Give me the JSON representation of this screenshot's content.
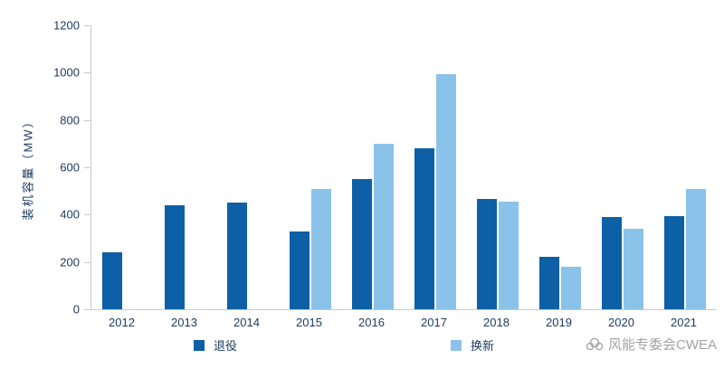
{
  "chart_data": {
    "type": "bar",
    "title": "",
    "xlabel": "",
    "ylabel": "装机容量（MW）",
    "ylim": [
      0,
      1200
    ],
    "yticks": [
      0,
      200,
      400,
      600,
      800,
      1000,
      1200
    ],
    "grid": false,
    "legend_position": "bottom",
    "categories": [
      "2012",
      "2013",
      "2014",
      "2015",
      "2016",
      "2017",
      "2018",
      "2019",
      "2020",
      "2021"
    ],
    "series": [
      {
        "name": "退役",
        "color": "#0d5fa6",
        "values": [
          240,
          440,
          450,
          330,
          550,
          680,
          465,
          220,
          390,
          395
        ]
      },
      {
        "name": "换新",
        "color": "#8ac2e9",
        "values": [
          null,
          null,
          null,
          510,
          700,
          995,
          455,
          180,
          340,
          510
        ]
      }
    ]
  },
  "watermark": {
    "text": "风能专委会CWEA"
  }
}
